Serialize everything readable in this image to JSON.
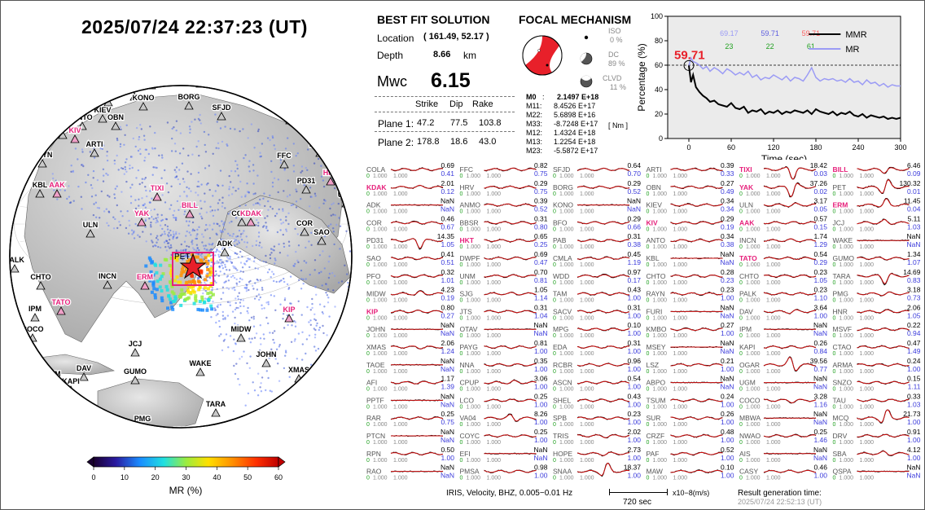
{
  "header": {
    "datetime": "2025/07/24  22:37:23 (UT)"
  },
  "solution": {
    "title": "BEST FIT SOLUTION",
    "location_label": "Location",
    "location_value": "( 161.49,  52.17 )",
    "depth_label": "Depth",
    "depth_value": "8.66",
    "depth_unit": "km",
    "mw_label": "Mwc",
    "mw_value": "6.15",
    "col_strike": "Strike",
    "col_dip": "Dip",
    "col_rake": "Rake",
    "plane1_label": "Plane 1:",
    "plane1": [
      "47.2",
      "77.5",
      "103.8"
    ],
    "plane2_label": "Plane 2:",
    "plane2": [
      "178.8",
      "18.6",
      "43.0"
    ]
  },
  "focal": {
    "title": "FOCAL MECHANISM",
    "iso_label": "ISO",
    "iso_value": "0 %",
    "dc_label": "DC",
    "dc_value": "89 %",
    "clvd_label": "CLVD",
    "clvd_value": "11 %",
    "m0_label": "M0",
    "m0_value": "2.1497 E+18",
    "tensor": [
      {
        "k": "M11:",
        "v": "8.4526 E+17"
      },
      {
        "k": "M22:",
        "v": "5.6898 E+16"
      },
      {
        "k": "M33:",
        "v": "-8.7248 E+17"
      },
      {
        "k": "M12:",
        "v": "1.4324 E+18"
      },
      {
        "k": "M13:",
        "v": "1.2254 E+18"
      },
      {
        "k": "M23:",
        "v": "-5.5872 E+17"
      }
    ],
    "unit": "[ Nm ]",
    "colors": {
      "compression": "#e8202a",
      "dilatation": "#ffffff"
    }
  },
  "colorbar": {
    "label": "MR (%)",
    "ticks": [
      "0",
      "10",
      "20",
      "30",
      "40",
      "50",
      "60"
    ]
  },
  "globe": {
    "stations_black": [
      "PAB",
      "CMLA",
      "WDD",
      "BFO",
      "KONO",
      "BORG",
      "KIEV",
      "OBN",
      "SFJD",
      "ANTO",
      "BBSR",
      "HRV",
      "EIL",
      "ARTI",
      "DWPF",
      "RAYN",
      "FFC",
      "KBL",
      "PD31",
      "UNM",
      "ULN",
      "COLA",
      "COR",
      "SAO",
      "ADK",
      "PALK",
      "CHTO",
      "INCN",
      "IPM",
      "COCO",
      "MIDW",
      "JOHN",
      "JCJ",
      "WAKE",
      "XMAS",
      "TAOE",
      "UGM",
      "DAV",
      "KAPI",
      "GUMO",
      "MBWA",
      "PMG",
      "TARA",
      "PPTF",
      "RAR",
      "AFI",
      "HNR",
      "MSVF",
      "RAO",
      "CTAO",
      "ARMA"
    ],
    "stations_magenta": [
      "KIV",
      "AAK",
      "TIXI",
      "YAK",
      "BILL",
      "KDAK",
      "HKT",
      "ERM",
      "TATO",
      "KIP"
    ],
    "epicenter_label": "PET"
  },
  "chart_data": {
    "type": "line",
    "title": "",
    "xlabel": "Time (sec)",
    "ylabel": "Percentage (%)",
    "xlim": [
      -30,
      300
    ],
    "ylim": [
      0,
      100
    ],
    "xticks": [
      0,
      60,
      120,
      180,
      240,
      300
    ],
    "yticks": [
      0,
      20,
      40,
      60,
      80,
      100
    ],
    "reference_line_y": 60,
    "highlight_value": "59.71",
    "summary_top": [
      "69.17",
      "59.71",
      "59.71"
    ],
    "summary_bottom": [
      "23",
      "22",
      "61"
    ],
    "legend": [
      "MMR",
      "MR"
    ],
    "x": [
      0,
      3,
      6,
      10,
      15,
      20,
      25,
      30,
      36,
      42,
      48,
      54,
      60,
      66,
      72,
      78,
      84,
      90,
      96,
      102,
      108,
      114,
      120,
      126,
      132,
      138,
      144,
      150,
      156,
      162,
      168,
      174,
      180,
      186,
      192,
      198,
      204,
      210,
      216,
      222,
      228,
      234,
      240,
      246,
      252,
      258,
      264,
      270,
      276,
      282,
      288,
      294,
      300
    ],
    "series": [
      {
        "name": "MMR",
        "values": [
          59.7,
          46,
          52,
          42,
          38,
          35,
          33,
          30,
          31,
          28,
          27,
          26,
          29,
          25,
          24,
          26,
          21,
          23,
          22,
          24,
          20,
          22,
          21,
          23,
          20,
          22,
          21,
          23,
          22,
          21,
          23,
          20,
          24,
          22,
          21,
          20,
          22,
          19,
          21,
          20,
          22,
          19,
          18,
          20,
          17,
          19,
          18,
          17,
          18,
          16,
          17,
          16,
          17
        ]
      },
      {
        "name": "MR",
        "values": [
          59.7,
          66,
          63,
          62,
          60,
          57,
          59,
          55,
          58,
          56,
          53,
          57,
          55,
          52,
          54,
          52,
          55,
          50,
          52,
          48,
          50,
          49,
          52,
          50,
          48,
          51,
          47,
          50,
          49,
          47,
          52,
          58,
          50,
          47,
          49,
          48,
          49,
          47,
          48,
          46,
          49,
          46,
          47,
          44,
          48,
          45,
          46,
          43,
          45,
          42,
          44,
          43,
          43
        ]
      }
    ]
  },
  "seismograms": {
    "columns": [
      [
        [
          "COLA",
          "0.69",
          "0.41"
        ],
        [
          "KDAK",
          "2.01",
          "0.12"
        ],
        [
          "ADK",
          "NaN",
          "NaN"
        ],
        [
          "COR",
          "0.46",
          "0.67"
        ],
        [
          "PD31",
          "14.35",
          "1.05"
        ],
        [
          "SAO",
          "0.41",
          "0.51"
        ],
        [
          "PFO",
          "0.32",
          "1.01"
        ],
        [
          "MIDW",
          "4.23",
          "0.19"
        ],
        [
          "KIP",
          "0.80",
          "0.27"
        ],
        [
          "JOHN",
          "NaN",
          "NaN"
        ],
        [
          "XMAS",
          "2.06",
          "1.24"
        ],
        [
          "TAOE",
          "NaN",
          "NaN"
        ],
        [
          "AFI",
          "1.17",
          "1.39"
        ],
        [
          "PPTF",
          "NaN",
          "NaN"
        ],
        [
          "RAR",
          "0.25",
          "0.75"
        ],
        [
          "PTCN",
          "NaN",
          "NaN"
        ],
        [
          "RPN",
          "0.50",
          "1.00"
        ],
        [
          "RAO",
          "NaN",
          "NaN"
        ]
      ],
      [
        [
          "FFC",
          "0.82",
          "0.75"
        ],
        [
          "HRV",
          "0.29",
          "0.75"
        ],
        [
          "ANMO",
          "0.39",
          "0.52"
        ],
        [
          "BBSR",
          "0.31",
          "0.80"
        ],
        [
          "HKT",
          "0.65",
          "0.25"
        ],
        [
          "DWPF",
          "0.69",
          "0.47"
        ],
        [
          "UNM",
          "0.70",
          "0.81"
        ],
        [
          "SJG",
          "1.05",
          "1.14"
        ],
        [
          "JTS",
          "0.31",
          "1.04"
        ],
        [
          "OTAV",
          "NaN",
          "NaN"
        ],
        [
          "PAYG",
          "0.81",
          "1.00"
        ],
        [
          "NNA",
          "0.35",
          "1.00"
        ],
        [
          "CPUP",
          "3.06",
          "1.00"
        ],
        [
          "LCO",
          "0.25",
          "1.00"
        ],
        [
          "VA04",
          "8.26",
          "1.00"
        ],
        [
          "COYC",
          "0.25",
          "1.00"
        ],
        [
          "EFI",
          "NaN",
          "NaN"
        ],
        [
          "PMSA",
          "0.98",
          "1.00"
        ]
      ],
      [
        [
          "SFJD",
          "0.64",
          "0.70"
        ],
        [
          "BORG",
          "0.29",
          "0.52"
        ],
        [
          "KONO",
          "NaN",
          "NaN"
        ],
        [
          "BFO",
          "0.29",
          "0.66"
        ],
        [
          "PAB",
          "0.31",
          "0.38"
        ],
        [
          "CMLA",
          "0.45",
          "1.19"
        ],
        [
          "WDD",
          "0.97",
          "0.17"
        ],
        [
          "TAM",
          "0.43",
          "1.00"
        ],
        [
          "SACV",
          "0.31",
          "1.00"
        ],
        [
          "MPG",
          "0.10",
          "1.00"
        ],
        [
          "EDA",
          "0.31",
          "1.00"
        ],
        [
          "RCBR",
          "0.96",
          "1.00"
        ],
        [
          "ASCN",
          "0.54",
          "1.00"
        ],
        [
          "SHEL",
          "0.43",
          "1.00"
        ],
        [
          "SPB",
          "0.23",
          "1.00"
        ],
        [
          "TRIS",
          "2.02",
          "1.00"
        ],
        [
          "HOPE",
          "2.73",
          "1.00"
        ],
        [
          "SNAA",
          "18.37",
          "1.00"
        ]
      ],
      [
        [
          "ARTI",
          "0.39",
          "0.33"
        ],
        [
          "OBN",
          "0.27",
          "0.49"
        ],
        [
          "KIEV",
          "0.34",
          "0.34"
        ],
        [
          "KIV",
          "0.29",
          "0.19"
        ],
        [
          "ANTO",
          "0.34",
          "0.38"
        ],
        [
          "KBL",
          "NaN",
          "NaN"
        ],
        [
          "CHTO",
          "0.28",
          "0.23"
        ],
        [
          "RAYN",
          "0.23",
          "1.00"
        ],
        [
          "FURI",
          "NaN",
          "NaN"
        ],
        [
          "KMBO",
          "0.27",
          "1.00"
        ],
        [
          "MSEY",
          "NaN",
          "NaN"
        ],
        [
          "LSZ",
          "0.21",
          "1.00"
        ],
        [
          "ABPO",
          "NaN",
          "NaN"
        ],
        [
          "TSUM",
          "0.24",
          "1.00"
        ],
        [
          "SUR",
          "0.26",
          "1.00"
        ],
        [
          "CRZF",
          "0.48",
          "1.00"
        ],
        [
          "PAF",
          "0.52",
          "1.00"
        ],
        [
          "MAW",
          "0.10",
          "1.00"
        ]
      ],
      [
        [
          "TIXI",
          "18.42",
          "0.03"
        ],
        [
          "YAK",
          "37.26",
          "0.02"
        ],
        [
          "ULN",
          "3.17",
          "0.05"
        ],
        [
          "AAK",
          "0.57",
          "0.15"
        ],
        [
          "INCN",
          "1.74",
          "1.29"
        ],
        [
          "TATO",
          "0.54",
          "0.29"
        ],
        [
          "CHTO",
          "0.23",
          "1.05"
        ],
        [
          "PALK",
          "0.23",
          "1.10"
        ],
        [
          "DAV",
          "3.64",
          "1.00"
        ],
        [
          "IPM",
          "NaN",
          "NaN"
        ],
        [
          "KAPI",
          "0.26",
          "0.84"
        ],
        [
          "OGAR",
          "39.56",
          "0.77"
        ],
        [
          "UGM",
          "NaN",
          "NaN"
        ],
        [
          "COCO",
          "3.28",
          "1.16"
        ],
        [
          "MBWA",
          "NaN",
          "NaN"
        ],
        [
          "NWAO",
          "0.25",
          "1.46"
        ],
        [
          "AIS",
          "NaN",
          "NaN"
        ],
        [
          "CASY",
          "0.46",
          "1.00"
        ]
      ],
      [
        [
          "BILL",
          "6.46",
          "0.09"
        ],
        [
          "PET",
          "130.32",
          "0.01"
        ],
        [
          "ERM",
          "11.45",
          "0.04"
        ],
        [
          "JCJ",
          "5.11",
          "1.03"
        ],
        [
          "WAKE",
          "NaN",
          "NaN"
        ],
        [
          "GUMO",
          "1.34",
          "1.07"
        ],
        [
          "TARA",
          "14.69",
          "0.83"
        ],
        [
          "PMG",
          "3.18",
          "0.73"
        ],
        [
          "HNR",
          "2.06",
          "1.05"
        ],
        [
          "MSVF",
          "0.22",
          "0.94"
        ],
        [
          "CTAO",
          "0.47",
          "1.49"
        ],
        [
          "ARMA",
          "0.24",
          "1.00"
        ],
        [
          "SNZO",
          "0.15",
          "1.11"
        ],
        [
          "TAU",
          "0.33",
          "1.03"
        ],
        [
          "MCQ",
          "21.73",
          "1.00"
        ],
        [
          "DRV",
          "0.91",
          "1.00"
        ],
        [
          "SBA",
          "4.12",
          "1.00"
        ],
        [
          "QSPA",
          "NaN",
          "NaN"
        ]
      ]
    ],
    "magenta_stations": [
      "KDAK",
      "KIP",
      "HKT",
      "KIV",
      "TIXI",
      "YAK",
      "AAK",
      "TATO",
      "BILL",
      "ERM"
    ],
    "range_left": "0",
    "range_mid": "1.000",
    "range_right": "1.000",
    "scale_label": "720 sec",
    "scale_unit": "x10−8(m/s)"
  },
  "footer": {
    "processing": "IRIS, Velocity,   BHZ, 0.005−0.01 Hz",
    "result_label": "Result generation time:",
    "result_time": "2025/07/24 22:52:13 (UT)"
  }
}
